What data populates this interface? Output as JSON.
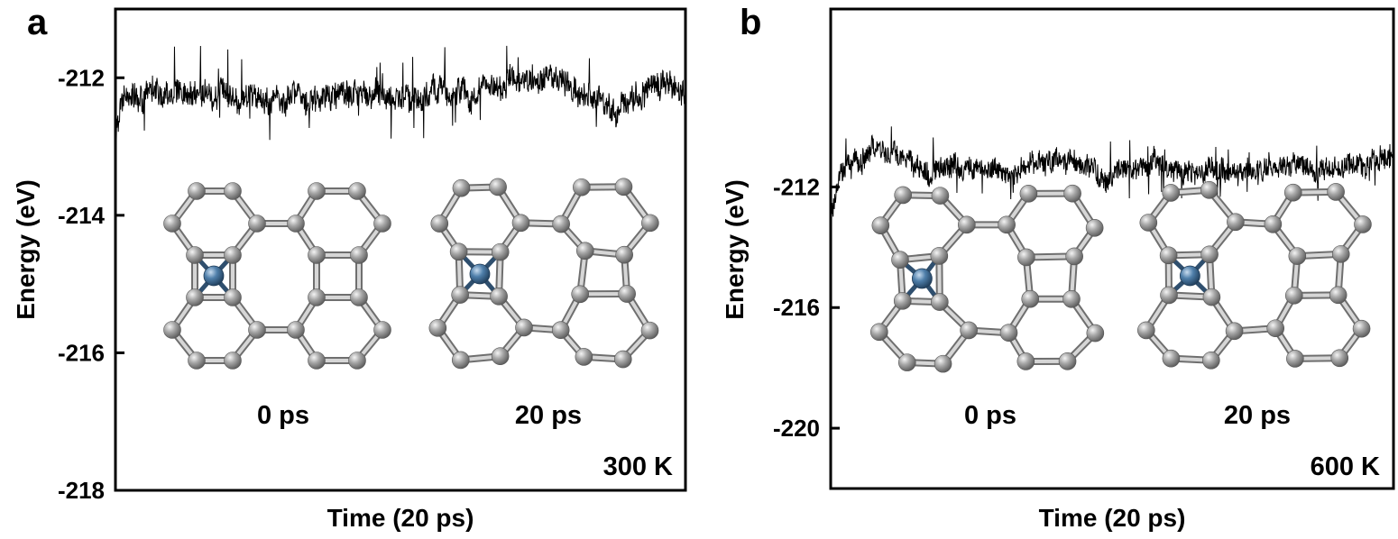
{
  "chart_data": [
    {
      "type": "line",
      "panel": "a",
      "xlabel": "Time (20 ps)",
      "ylabel": "Energy (eV)",
      "yticks": [
        -212,
        -214,
        -216,
        -218
      ],
      "ylim": [
        -218,
        -211.0
      ],
      "xlim": [
        0,
        20
      ],
      "grid": false,
      "annotation": "300 K",
      "snapshot_labels": [
        "0 ps",
        "20 ps"
      ],
      "series": [
        {
          "color": "#000000",
          "trace": [
            [
              0,
              -212.9
            ],
            [
              0.3,
              -212.3
            ],
            [
              2,
              -212.25
            ],
            [
              4,
              -212.25
            ],
            [
              6,
              -212.3
            ],
            [
              8,
              -212.2
            ],
            [
              10,
              -212.3
            ],
            [
              12,
              -212.2
            ],
            [
              14,
              -212.15
            ],
            [
              15.5,
              -212.0
            ],
            [
              17.5,
              -212.5
            ],
            [
              19,
              -212.1
            ],
            [
              20,
              -212.3
            ]
          ]
        }
      ]
    },
    {
      "type": "line",
      "panel": "b",
      "xlabel": "Time (20 ps)",
      "ylabel": "Energy (eV)",
      "yticks": [
        -212,
        -216,
        -220
      ],
      "ylim": [
        -222,
        -206.1
      ],
      "xlim": [
        0,
        20
      ],
      "grid": false,
      "annotation": "600 K",
      "snapshot_labels": [
        "0 ps",
        "20 ps"
      ],
      "series": [
        {
          "color": "#000000",
          "trace": [
            [
              0,
              -212.9
            ],
            [
              0.3,
              -211.5
            ],
            [
              1.5,
              -210.6
            ],
            [
              2.5,
              -211.0
            ],
            [
              3.5,
              -211.6
            ],
            [
              5,
              -211.4
            ],
            [
              7,
              -211.3
            ],
            [
              8.5,
              -211.1
            ],
            [
              10,
              -211.5
            ],
            [
              12,
              -211.3
            ],
            [
              14,
              -211.5
            ],
            [
              16,
              -211.4
            ],
            [
              18,
              -211.3
            ],
            [
              20,
              -211.2
            ]
          ]
        }
      ]
    }
  ]
}
